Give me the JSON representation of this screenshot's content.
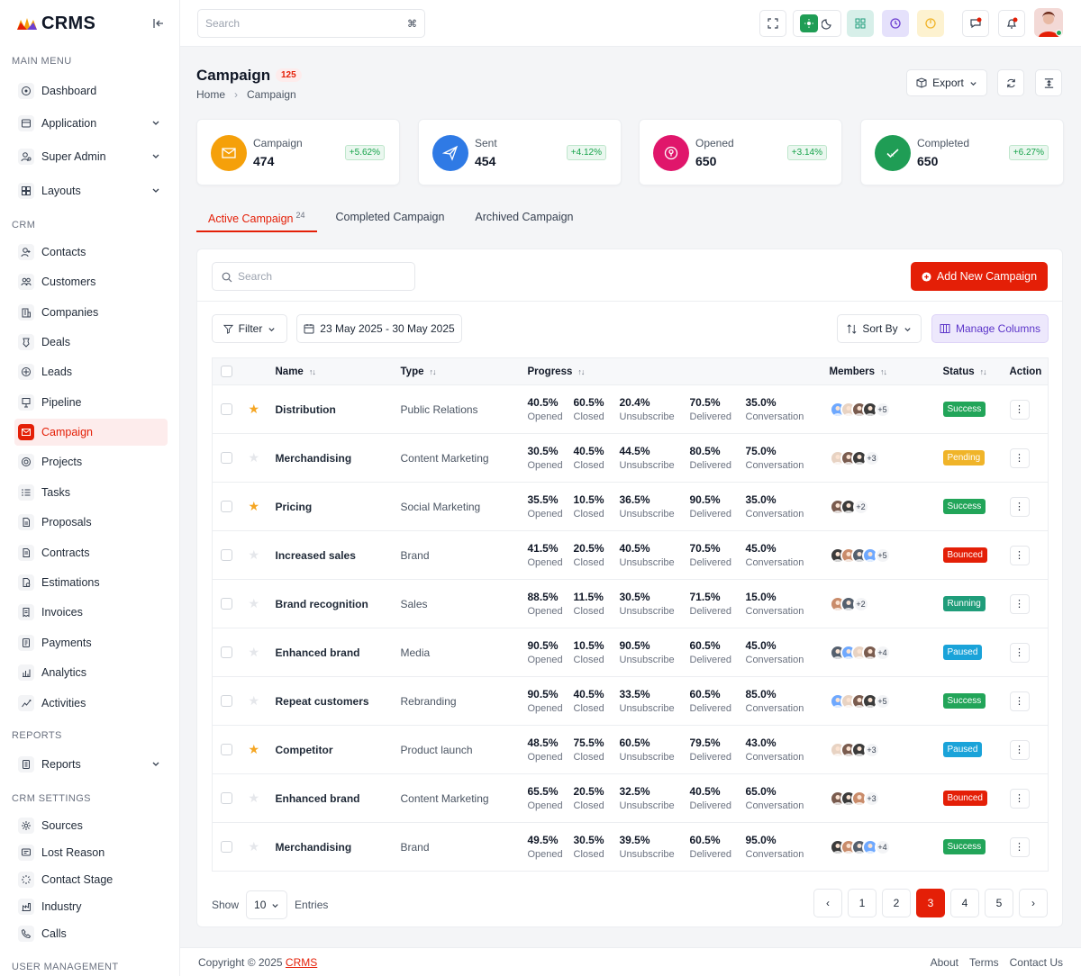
{
  "app": {
    "name": "CRMS"
  },
  "sidebar": {
    "sections": [
      {
        "title": "MAIN MENU"
      },
      {
        "title": "CRM"
      },
      {
        "title": "REPORTS"
      },
      {
        "title": "CRM SETTINGS"
      },
      {
        "title": "USER MANAGEMENT"
      }
    ],
    "items": [
      {
        "label": "Dashboard",
        "icon": "dashboard-icon"
      },
      {
        "label": "Application",
        "icon": "application-icon",
        "submenu": true
      },
      {
        "label": "Super Admin",
        "icon": "user-cog-icon",
        "submenu": true
      },
      {
        "label": "Layouts",
        "icon": "layout-icon",
        "submenu": true
      },
      {
        "label": "Contacts",
        "icon": "contacts-icon"
      },
      {
        "label": "Customers",
        "icon": "customers-icon"
      },
      {
        "label": "Companies",
        "icon": "companies-icon"
      },
      {
        "label": "Deals",
        "icon": "deals-icon"
      },
      {
        "label": "Leads",
        "icon": "leads-icon"
      },
      {
        "label": "Pipeline",
        "icon": "pipeline-icon"
      },
      {
        "label": "Campaign",
        "icon": "campaign-icon",
        "active": true
      },
      {
        "label": "Projects",
        "icon": "projects-icon"
      },
      {
        "label": "Tasks",
        "icon": "tasks-icon"
      },
      {
        "label": "Proposals",
        "icon": "proposals-icon"
      },
      {
        "label": "Contracts",
        "icon": "contracts-icon"
      },
      {
        "label": "Estimations",
        "icon": "estimations-icon"
      },
      {
        "label": "Invoices",
        "icon": "invoices-icon"
      },
      {
        "label": "Payments",
        "icon": "payments-icon"
      },
      {
        "label": "Analytics",
        "icon": "analytics-icon"
      },
      {
        "label": "Activities",
        "icon": "activities-icon"
      },
      {
        "label": "Reports",
        "icon": "reports-icon",
        "submenu": true
      },
      {
        "label": "Sources",
        "icon": "sources-icon"
      },
      {
        "label": "Lost Reason",
        "icon": "lost-reason-icon"
      },
      {
        "label": "Contact Stage",
        "icon": "contact-stage-icon"
      },
      {
        "label": "Industry",
        "icon": "industry-icon"
      },
      {
        "label": "Calls",
        "icon": "calls-icon"
      }
    ]
  },
  "topbar": {
    "search_placeholder": "Search",
    "search_shortcut": "⌘"
  },
  "page": {
    "title": "Campaign",
    "count": "125",
    "breadcrumb": [
      "Home",
      "Campaign"
    ],
    "export_label": "Export"
  },
  "stats": [
    {
      "label": "Campaign",
      "value": "474",
      "delta": "+5.62%",
      "color": "#f5a00a",
      "icon": "envelope-icon"
    },
    {
      "label": "Sent",
      "value": "454",
      "delta": "+4.12%",
      "color": "#2f7ae5",
      "icon": "send-icon"
    },
    {
      "label": "Opened",
      "value": "650",
      "delta": "+3.14%",
      "color": "#e0166b",
      "icon": "opened-icon"
    },
    {
      "label": "Completed",
      "value": "650",
      "delta": "+6.27%",
      "color": "#1f9d55",
      "icon": "check-icon"
    }
  ],
  "tabs": [
    {
      "label": "Active Campaign",
      "count": "24",
      "active": true
    },
    {
      "label": "Completed Campaign",
      "count": ""
    },
    {
      "label": "Archived Campaign",
      "count": ""
    }
  ],
  "panel": {
    "search_placeholder": "Search",
    "add_label": "Add New Campaign",
    "filter_label": "Filter",
    "date_range": "23 May 2025 - 30 May 2025",
    "sort_label": "Sort By",
    "manage_label": "Manage Columns"
  },
  "table": {
    "headers": {
      "name": "Name",
      "type": "Type",
      "progress": "Progress",
      "members": "Members",
      "status": "Status",
      "action": "Action"
    },
    "progress_labels": [
      "Opened",
      "Closed",
      "Unsubscribe",
      "Delivered",
      "Conversation"
    ],
    "rows": [
      {
        "starred": true,
        "name": "Distribution",
        "type": "Public Relations",
        "progress": [
          "40.5%",
          "60.5%",
          "20.4%",
          "70.5%",
          "35.0%"
        ],
        "avatars": 4,
        "more": "+5",
        "status": "Success"
      },
      {
        "starred": false,
        "name": "Merchandising",
        "type": "Content Marketing",
        "progress": [
          "30.5%",
          "40.5%",
          "44.5%",
          "80.5%",
          "75.0%"
        ],
        "avatars": 3,
        "more": "+3",
        "status": "Pending"
      },
      {
        "starred": true,
        "name": "Pricing",
        "type": "Social Marketing",
        "progress": [
          "35.5%",
          "10.5%",
          "36.5%",
          "90.5%",
          "35.0%"
        ],
        "avatars": 2,
        "more": "+2",
        "status": "Success"
      },
      {
        "starred": false,
        "name": "Increased sales",
        "type": "Brand",
        "progress": [
          "41.5%",
          "20.5%",
          "40.5%",
          "70.5%",
          "45.0%"
        ],
        "avatars": 4,
        "more": "+5",
        "status": "Bounced"
      },
      {
        "starred": false,
        "name": "Brand recognition",
        "type": "Sales",
        "progress": [
          "88.5%",
          "11.5%",
          "30.5%",
          "71.5%",
          "15.0%"
        ],
        "avatars": 2,
        "more": "+2",
        "status": "Running"
      },
      {
        "starred": false,
        "name": "Enhanced brand",
        "type": "Media",
        "progress": [
          "90.5%",
          "10.5%",
          "90.5%",
          "60.5%",
          "45.0%"
        ],
        "avatars": 4,
        "more": "+4",
        "status": "Paused"
      },
      {
        "starred": false,
        "name": "Repeat customers",
        "type": "Rebranding",
        "progress": [
          "90.5%",
          "40.5%",
          "33.5%",
          "60.5%",
          "85.0%"
        ],
        "avatars": 4,
        "more": "+5",
        "status": "Success"
      },
      {
        "starred": true,
        "name": "Competitor",
        "type": "Product launch",
        "progress": [
          "48.5%",
          "75.5%",
          "60.5%",
          "79.5%",
          "43.0%"
        ],
        "avatars": 3,
        "more": "+3",
        "status": "Paused"
      },
      {
        "starred": false,
        "name": "Enhanced brand",
        "type": "Content Marketing",
        "progress": [
          "65.5%",
          "20.5%",
          "32.5%",
          "40.5%",
          "65.0%"
        ],
        "avatars": 3,
        "more": "+3",
        "status": "Bounced"
      },
      {
        "starred": false,
        "name": "Merchandising",
        "type": "Brand",
        "progress": [
          "49.5%",
          "30.5%",
          "39.5%",
          "60.5%",
          "95.0%"
        ],
        "avatars": 4,
        "more": "+4",
        "status": "Success"
      }
    ]
  },
  "status_colors": {
    "Success": "#22a559",
    "Pending": "#f0b429",
    "Bounced": "#e41f07",
    "Running": "#1f9d7a",
    "Paused": "#1aa3d9"
  },
  "pagination": {
    "show_label": "Show",
    "entries_label": "Entries",
    "page_size": "10",
    "pages": [
      "1",
      "2",
      "3",
      "4",
      "5"
    ],
    "current": "3"
  },
  "footer": {
    "copyright": "Copyright © 2025",
    "brand": "CRMS",
    "links": [
      "About",
      "Terms",
      "Contact Us"
    ]
  }
}
